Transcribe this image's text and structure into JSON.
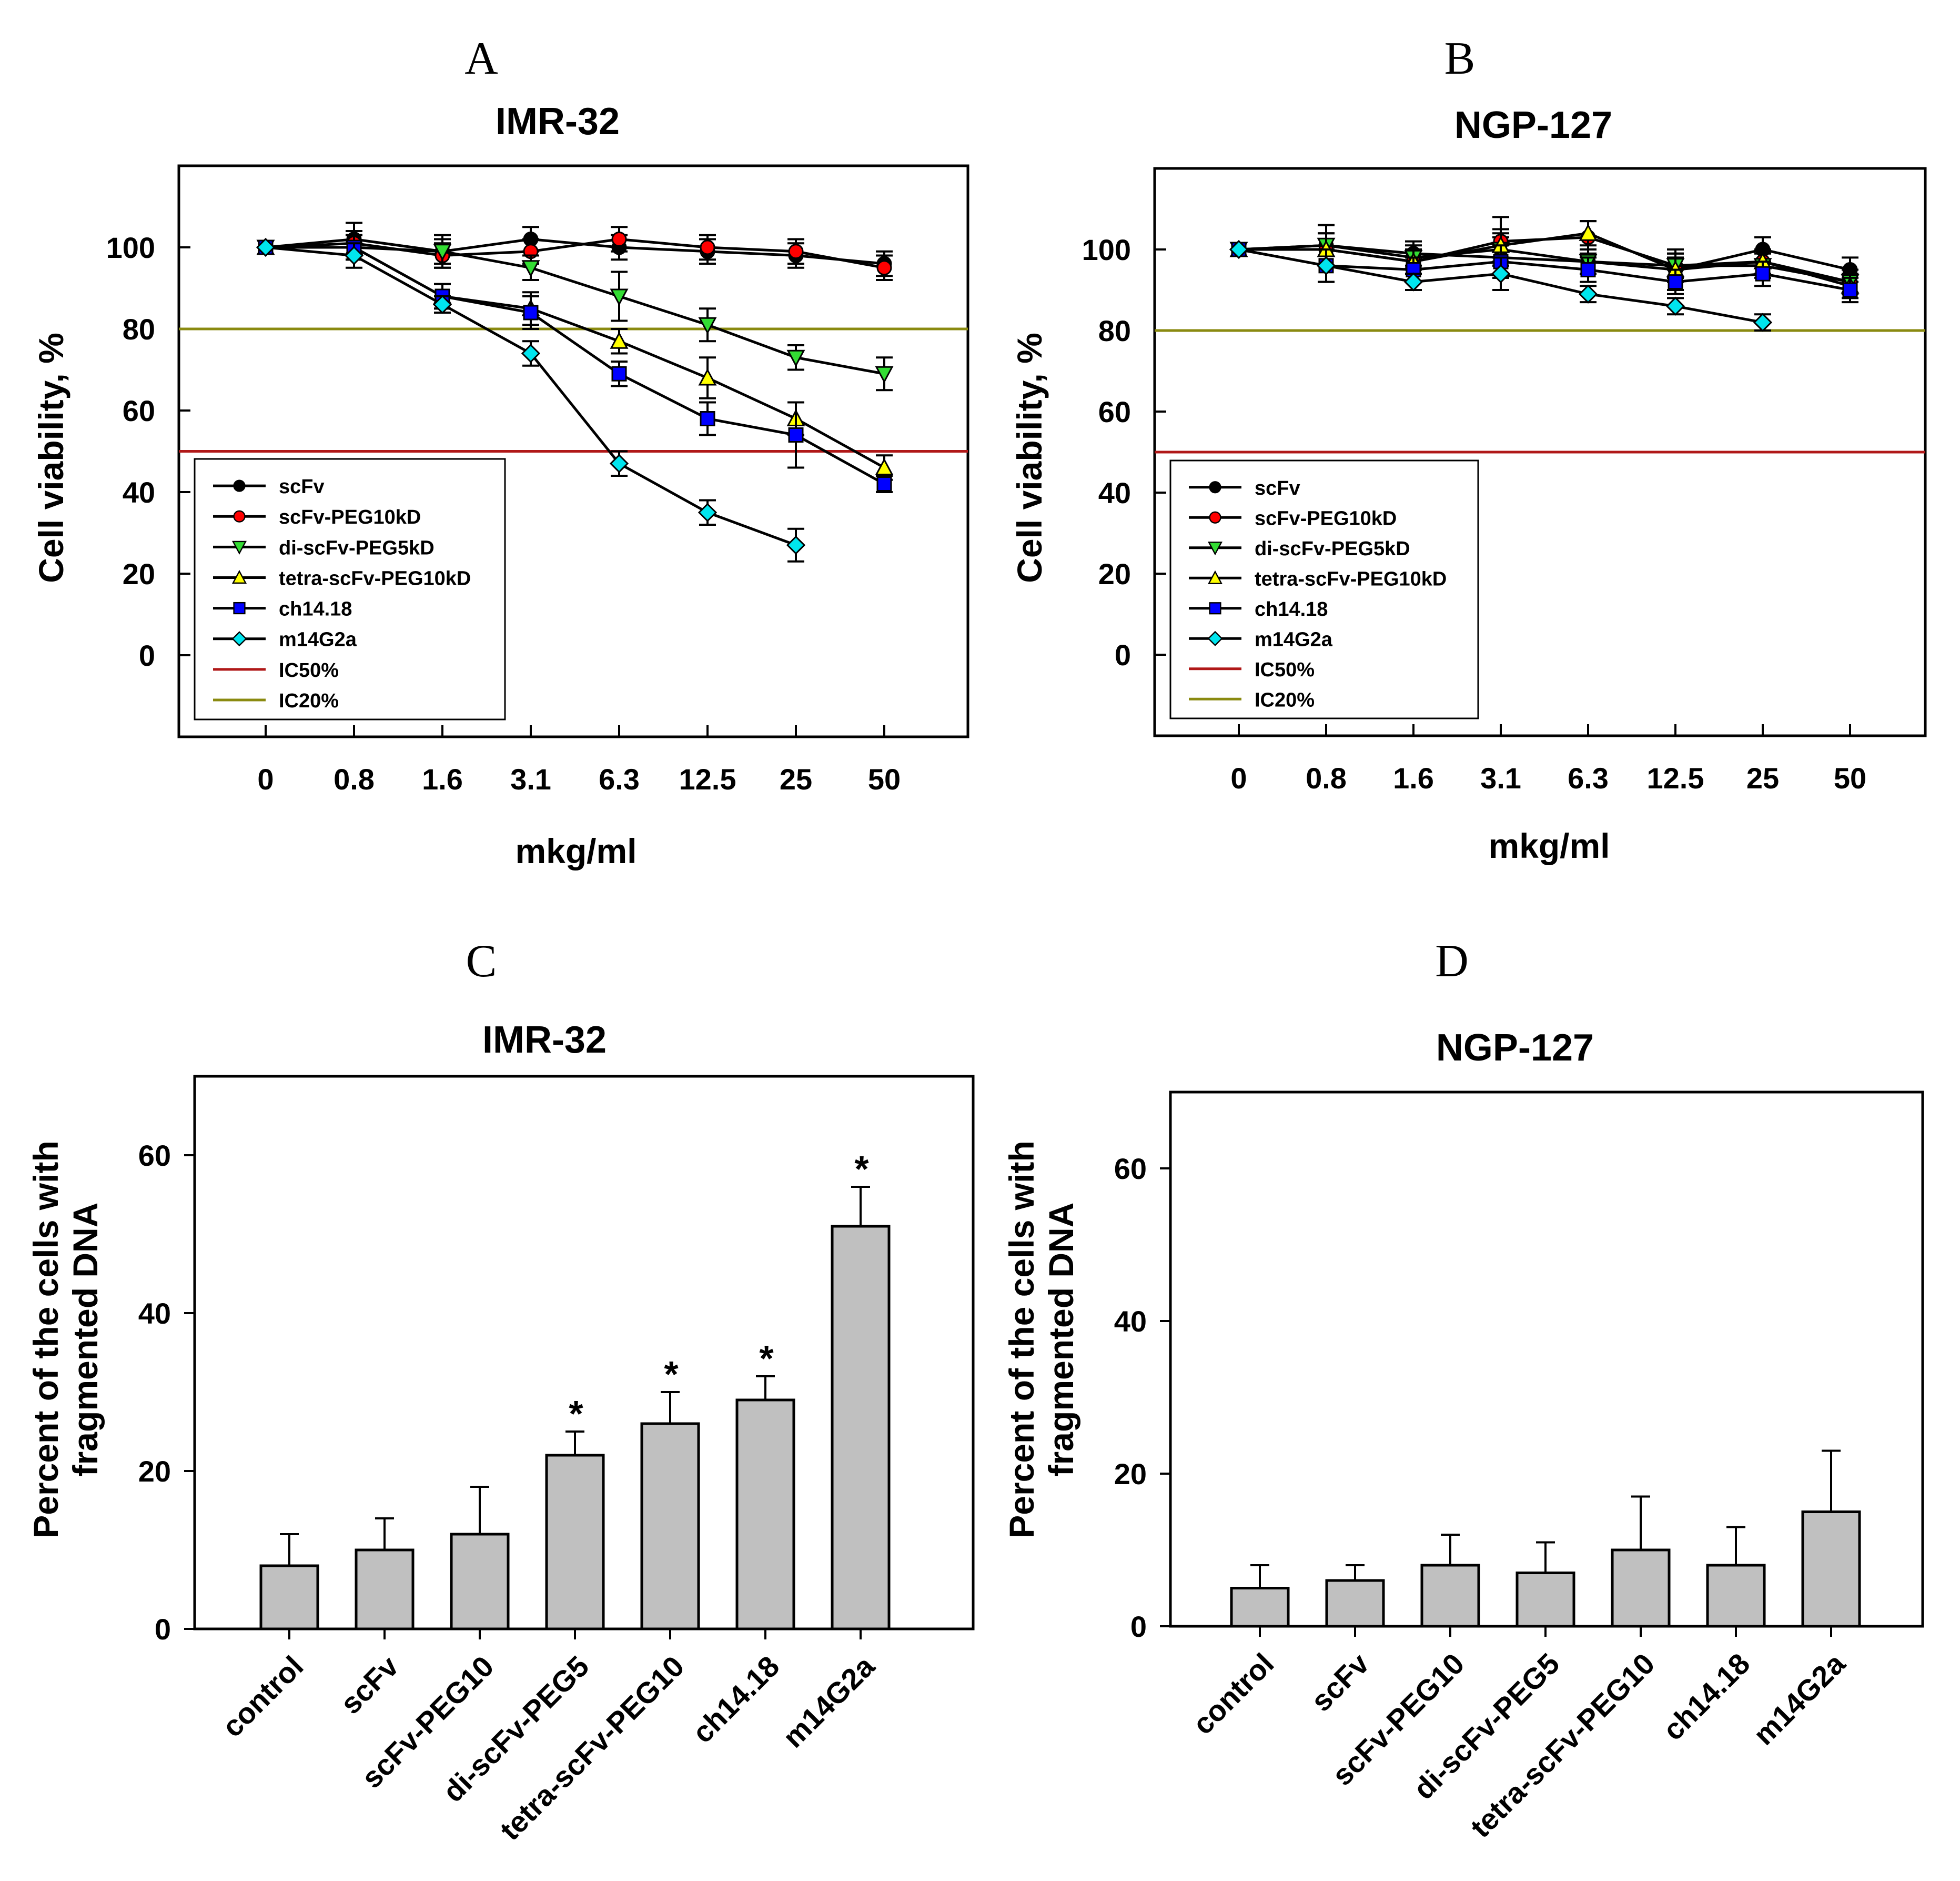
{
  "figure": {
    "panels": [
      "A",
      "B",
      "C",
      "D"
    ]
  },
  "colors": {
    "ic50": "#b01818",
    "ic20": "#8a8a10",
    "bar": "#c0c0c0",
    "axis": "#000000"
  },
  "chart_data": [
    {
      "id": "A",
      "panel_label": "A",
      "type": "line",
      "title": "IMR-32",
      "xlabel": "mkg/ml",
      "ylabel": "Cell viability, %",
      "categories": [
        "0",
        "0.8",
        "1.6",
        "3.1",
        "6.3",
        "12.5",
        "25",
        "50"
      ],
      "ylim": [
        -20,
        120
      ],
      "yticks": [
        0,
        20,
        40,
        60,
        80,
        100
      ],
      "legend_position": "bottom-left",
      "series": [
        {
          "name": "scFv",
          "marker": "circle",
          "color": "#000000",
          "values": [
            100,
            102,
            99,
            102,
            100,
            99,
            98,
            96
          ],
          "errors": [
            0,
            4,
            4,
            3,
            3,
            3,
            3,
            3
          ]
        },
        {
          "name": "scFv-PEG10kD",
          "marker": "circle",
          "color": "#ff0000",
          "values": [
            100,
            101,
            98,
            99,
            102,
            100,
            99,
            95
          ],
          "errors": [
            0,
            3,
            3,
            3,
            3,
            3,
            3,
            3
          ]
        },
        {
          "name": "di-scFv-PEG5kD",
          "marker": "triangle-down",
          "color": "#33dd33",
          "values": [
            100,
            100,
            99,
            95,
            88,
            81,
            73,
            69
          ],
          "errors": [
            0,
            3,
            3,
            3,
            6,
            4,
            3,
            4
          ]
        },
        {
          "name": "tetra-scFv-PEG10kD",
          "marker": "triangle-up",
          "color": "#ffff00",
          "values": [
            100,
            100,
            88,
            85,
            77,
            68,
            58,
            46
          ],
          "errors": [
            0,
            3,
            3,
            4,
            3,
            5,
            4,
            3
          ]
        },
        {
          "name": "ch14.18",
          "marker": "square",
          "color": "#0000ff",
          "values": [
            100,
            100,
            88,
            84,
            69,
            58,
            54,
            42
          ],
          "errors": [
            0,
            3,
            3,
            4,
            3,
            4,
            8,
            2
          ]
        },
        {
          "name": "m14G2a",
          "marker": "diamond",
          "color": "#00e5ee",
          "values": [
            100,
            98,
            86,
            74,
            47,
            35,
            27,
            null
          ],
          "errors": [
            0,
            3,
            2,
            3,
            3,
            3,
            4,
            null
          ]
        }
      ],
      "hlines": [
        {
          "name": "IC50%",
          "value": 50,
          "color": "#b01818"
        },
        {
          "name": "IC20%",
          "value": 80,
          "color": "#8a8a10"
        }
      ]
    },
    {
      "id": "B",
      "panel_label": "B",
      "type": "line",
      "title": "NGP-127",
      "xlabel": "mkg/ml",
      "ylabel": "Cell viability, %",
      "categories": [
        "0",
        "0.8",
        "1.6",
        "3.1",
        "6.3",
        "12.5",
        "25",
        "50"
      ],
      "ylim": [
        -20,
        120
      ],
      "yticks": [
        0,
        20,
        40,
        60,
        80,
        100
      ],
      "legend_position": "bottom-left",
      "series": [
        {
          "name": "scFv",
          "marker": "circle",
          "color": "#000000",
          "values": [
            100,
            101,
            99,
            98,
            97,
            95,
            100,
            95
          ],
          "errors": [
            0,
            5,
            3,
            5,
            3,
            5,
            3,
            3
          ]
        },
        {
          "name": "scFv-PEG10kD",
          "marker": "circle",
          "color": "#ff0000",
          "values": [
            100,
            100,
            97,
            102,
            103,
            96,
            97,
            92
          ],
          "errors": [
            0,
            4,
            3,
            6,
            4,
            3,
            3,
            3
          ]
        },
        {
          "name": "di-scFv-PEG5kD",
          "marker": "triangle-down",
          "color": "#33dd33",
          "values": [
            100,
            101,
            98,
            100,
            97,
            96,
            96,
            92
          ],
          "errors": [
            0,
            5,
            3,
            4,
            3,
            3,
            3,
            3
          ]
        },
        {
          "name": "tetra-scFv-PEG10kD",
          "marker": "triangle-up",
          "color": "#ffff00",
          "values": [
            100,
            100,
            97,
            101,
            104,
            95,
            97,
            91
          ],
          "errors": [
            0,
            4,
            3,
            4,
            3,
            3,
            3,
            3
          ]
        },
        {
          "name": "ch14.18",
          "marker": "square",
          "color": "#0000ff",
          "values": [
            100,
            96,
            95,
            97,
            95,
            92,
            94,
            90
          ],
          "errors": [
            0,
            4,
            3,
            4,
            3,
            3,
            3,
            3
          ]
        },
        {
          "name": "m14G2a",
          "marker": "diamond",
          "color": "#00e5ee",
          "values": [
            100,
            96,
            92,
            94,
            89,
            86,
            82,
            null
          ],
          "errors": [
            0,
            4,
            2,
            4,
            2,
            2,
            2,
            null
          ]
        }
      ],
      "hlines": [
        {
          "name": "IC50%",
          "value": 50,
          "color": "#b01818"
        },
        {
          "name": "IC20%",
          "value": 80,
          "color": "#8a8a10"
        }
      ]
    },
    {
      "id": "C",
      "panel_label": "C",
      "type": "bar",
      "title": "IMR-32",
      "xlabel": "",
      "ylabel": "Percent of the cells with fragmented DNA",
      "ylabel_lines": [
        "Percent of the cells with",
        "fragmented DNA"
      ],
      "categories": [
        "control",
        "scFv",
        "scFv-PEG10",
        "di-scFv-PEG5",
        "tetra-scFv-PEG10",
        "ch14.18",
        "m14G2a"
      ],
      "values": [
        8,
        10,
        12,
        22,
        26,
        29,
        51
      ],
      "errors": [
        4,
        4,
        6,
        3,
        4,
        3,
        5
      ],
      "significance": [
        "",
        "",
        "",
        "*",
        "*",
        "*",
        "*"
      ],
      "ylim": [
        0,
        70
      ],
      "yticks": [
        0,
        20,
        40,
        60
      ]
    },
    {
      "id": "D",
      "panel_label": "D",
      "type": "bar",
      "title": "NGP-127",
      "xlabel": "",
      "ylabel": "Percent of the cells with fragmented DNA",
      "ylabel_lines": [
        "Percent of the cells with",
        "fragmented DNA"
      ],
      "categories": [
        "control",
        "scFv",
        "scFv-PEG10",
        "di-scFv-PEG5",
        "tetra-scFv-PEG10",
        "ch14.18",
        "m14G2a"
      ],
      "values": [
        5,
        6,
        8,
        7,
        10,
        8,
        15
      ],
      "errors": [
        3,
        2,
        4,
        4,
        7,
        5,
        8
      ],
      "significance": [
        "",
        "",
        "",
        "",
        "",
        "",
        ""
      ],
      "ylim": [
        0,
        70
      ],
      "yticks": [
        0,
        20,
        40,
        60
      ]
    }
  ]
}
